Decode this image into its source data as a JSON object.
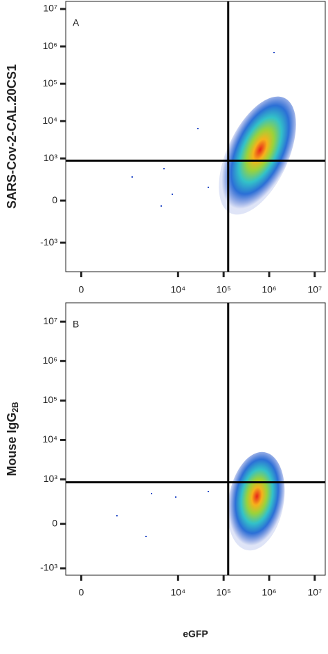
{
  "chart_data": [
    {
      "type": "density",
      "panel": "A",
      "y_label": "SARS-Cov-2-CAL.20CS1",
      "xlim": [
        -130,
        17000000
      ],
      "ylim": [
        -6000,
        16000000
      ],
      "xticks": [
        0,
        {
          "value": 10000,
          "label": "10⁴"
        },
        {
          "value": 100000,
          "label": "10⁵"
        },
        {
          "value": 1000000,
          "label": "10⁶"
        },
        {
          "value": 10000000,
          "label": "10⁷"
        }
      ],
      "yticks": [
        {
          "value": -1000,
          "label": "-10³"
        },
        0,
        {
          "value": 1000,
          "label": "10³"
        },
        {
          "value": 10000,
          "label": "10⁴"
        },
        {
          "value": 100000,
          "label": "10⁵"
        },
        {
          "value": 1000000,
          "label": "10⁶"
        },
        {
          "value": 10000000,
          "label": "10⁷"
        }
      ],
      "gate_x": 126000,
      "gate_y": 870
    },
    {
      "type": "density",
      "panel": "B",
      "y_label": "Mouse IgG",
      "y_label_subscript": "2B",
      "x_label": "eGFP",
      "xlim": [
        -130,
        17000000
      ],
      "ylim": [
        -1500,
        30000000
      ],
      "xticks": [
        0,
        {
          "value": 10000,
          "label": "10⁴"
        },
        {
          "value": 100000,
          "label": "10⁵"
        },
        {
          "value": 1000000,
          "label": "10⁶"
        },
        {
          "value": 10000000,
          "label": "10⁷"
        }
      ],
      "yticks": [
        {
          "value": -1000,
          "label": "-10³"
        },
        0,
        {
          "value": 1000,
          "label": "10³"
        },
        {
          "value": 10000,
          "label": "10⁴"
        },
        {
          "value": 100000,
          "label": "10⁵"
        },
        {
          "value": 1000000,
          "label": "10⁶"
        },
        {
          "value": 10000000,
          "label": "10⁷"
        }
      ],
      "gate_x": 126000,
      "gate_y": 840
    }
  ]
}
